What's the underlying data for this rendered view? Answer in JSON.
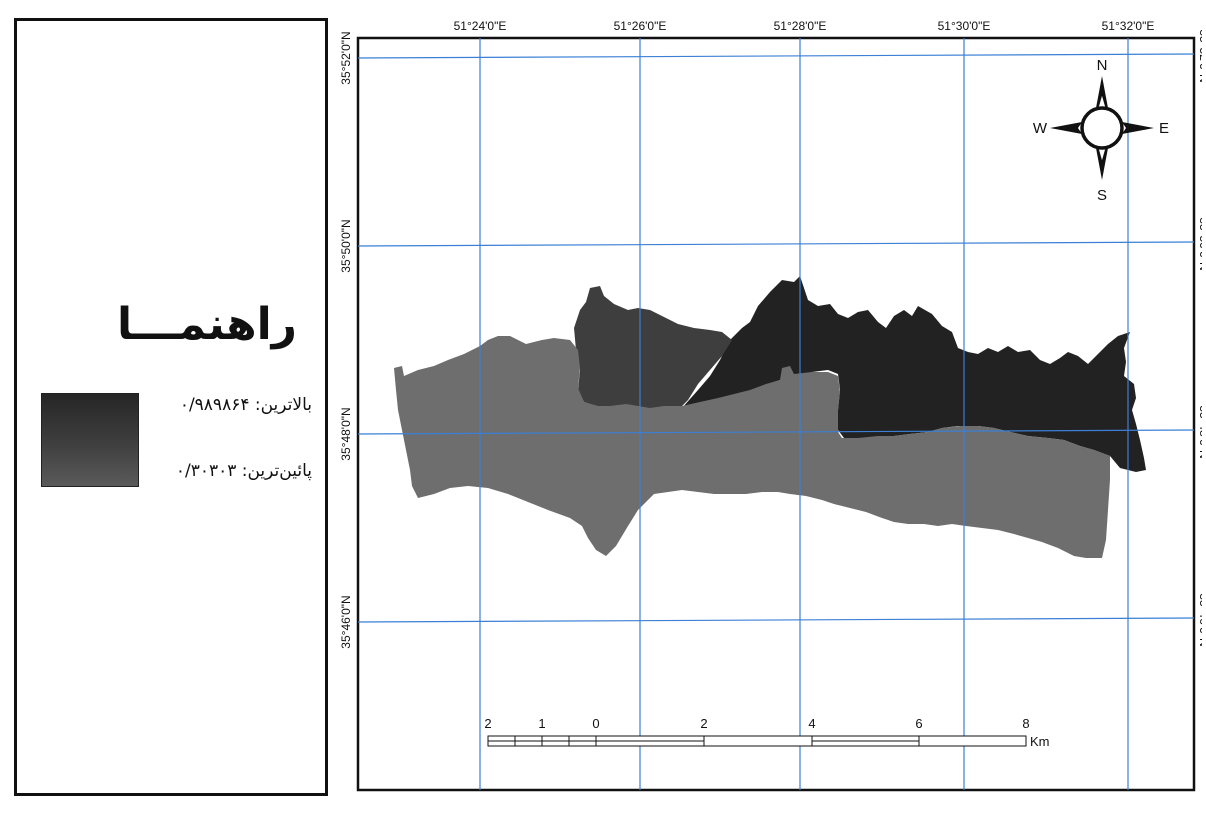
{
  "legend": {
    "title": "راهنمـــا",
    "high_label": "بالاترین: ۰/۹۸۹۸۶۴",
    "low_label": "پائین‌ترین: ۰/۳۰۳۰۳"
  },
  "graticule": {
    "lon_labels": [
      "51°24'0\"E",
      "51°26'0\"E",
      "51°28'0\"E",
      "51°30'0\"E",
      "51°32'0\"E"
    ],
    "lat_labels": [
      "35°52'0\"N",
      "35°50'0\"N",
      "35°48'0\"N",
      "35°46'0\"N"
    ],
    "line_color": "#3b7fd6"
  },
  "north_arrow": {
    "N": "N",
    "S": "S",
    "E": "E",
    "W": "W"
  },
  "scale_bar": {
    "labels": [
      "2",
      "1",
      "0",
      "2",
      "4",
      "6",
      "8"
    ],
    "unit": "Km"
  },
  "colors": {
    "zone_dark": "#222222",
    "zone_medium": "#3e3e3e",
    "zone_light": "#6e6e6e"
  }
}
